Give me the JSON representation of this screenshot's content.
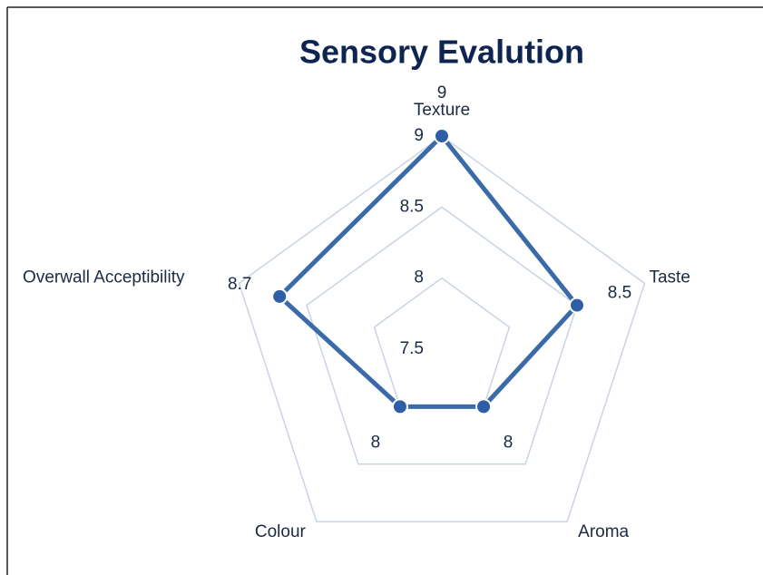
{
  "chart_data": {
    "type": "radar",
    "title": "Sensory Evalution",
    "categories": [
      "Texture",
      "Taste",
      "Aroma",
      "Colour",
      "Overwall Acceptibility"
    ],
    "values": [
      9,
      8.5,
      8,
      8,
      8.7
    ],
    "color": "#3a6aa8",
    "ylim": [
      7.5,
      9
    ],
    "yticks": [
      7.5,
      8,
      8.5,
      9
    ],
    "grid": true
  }
}
